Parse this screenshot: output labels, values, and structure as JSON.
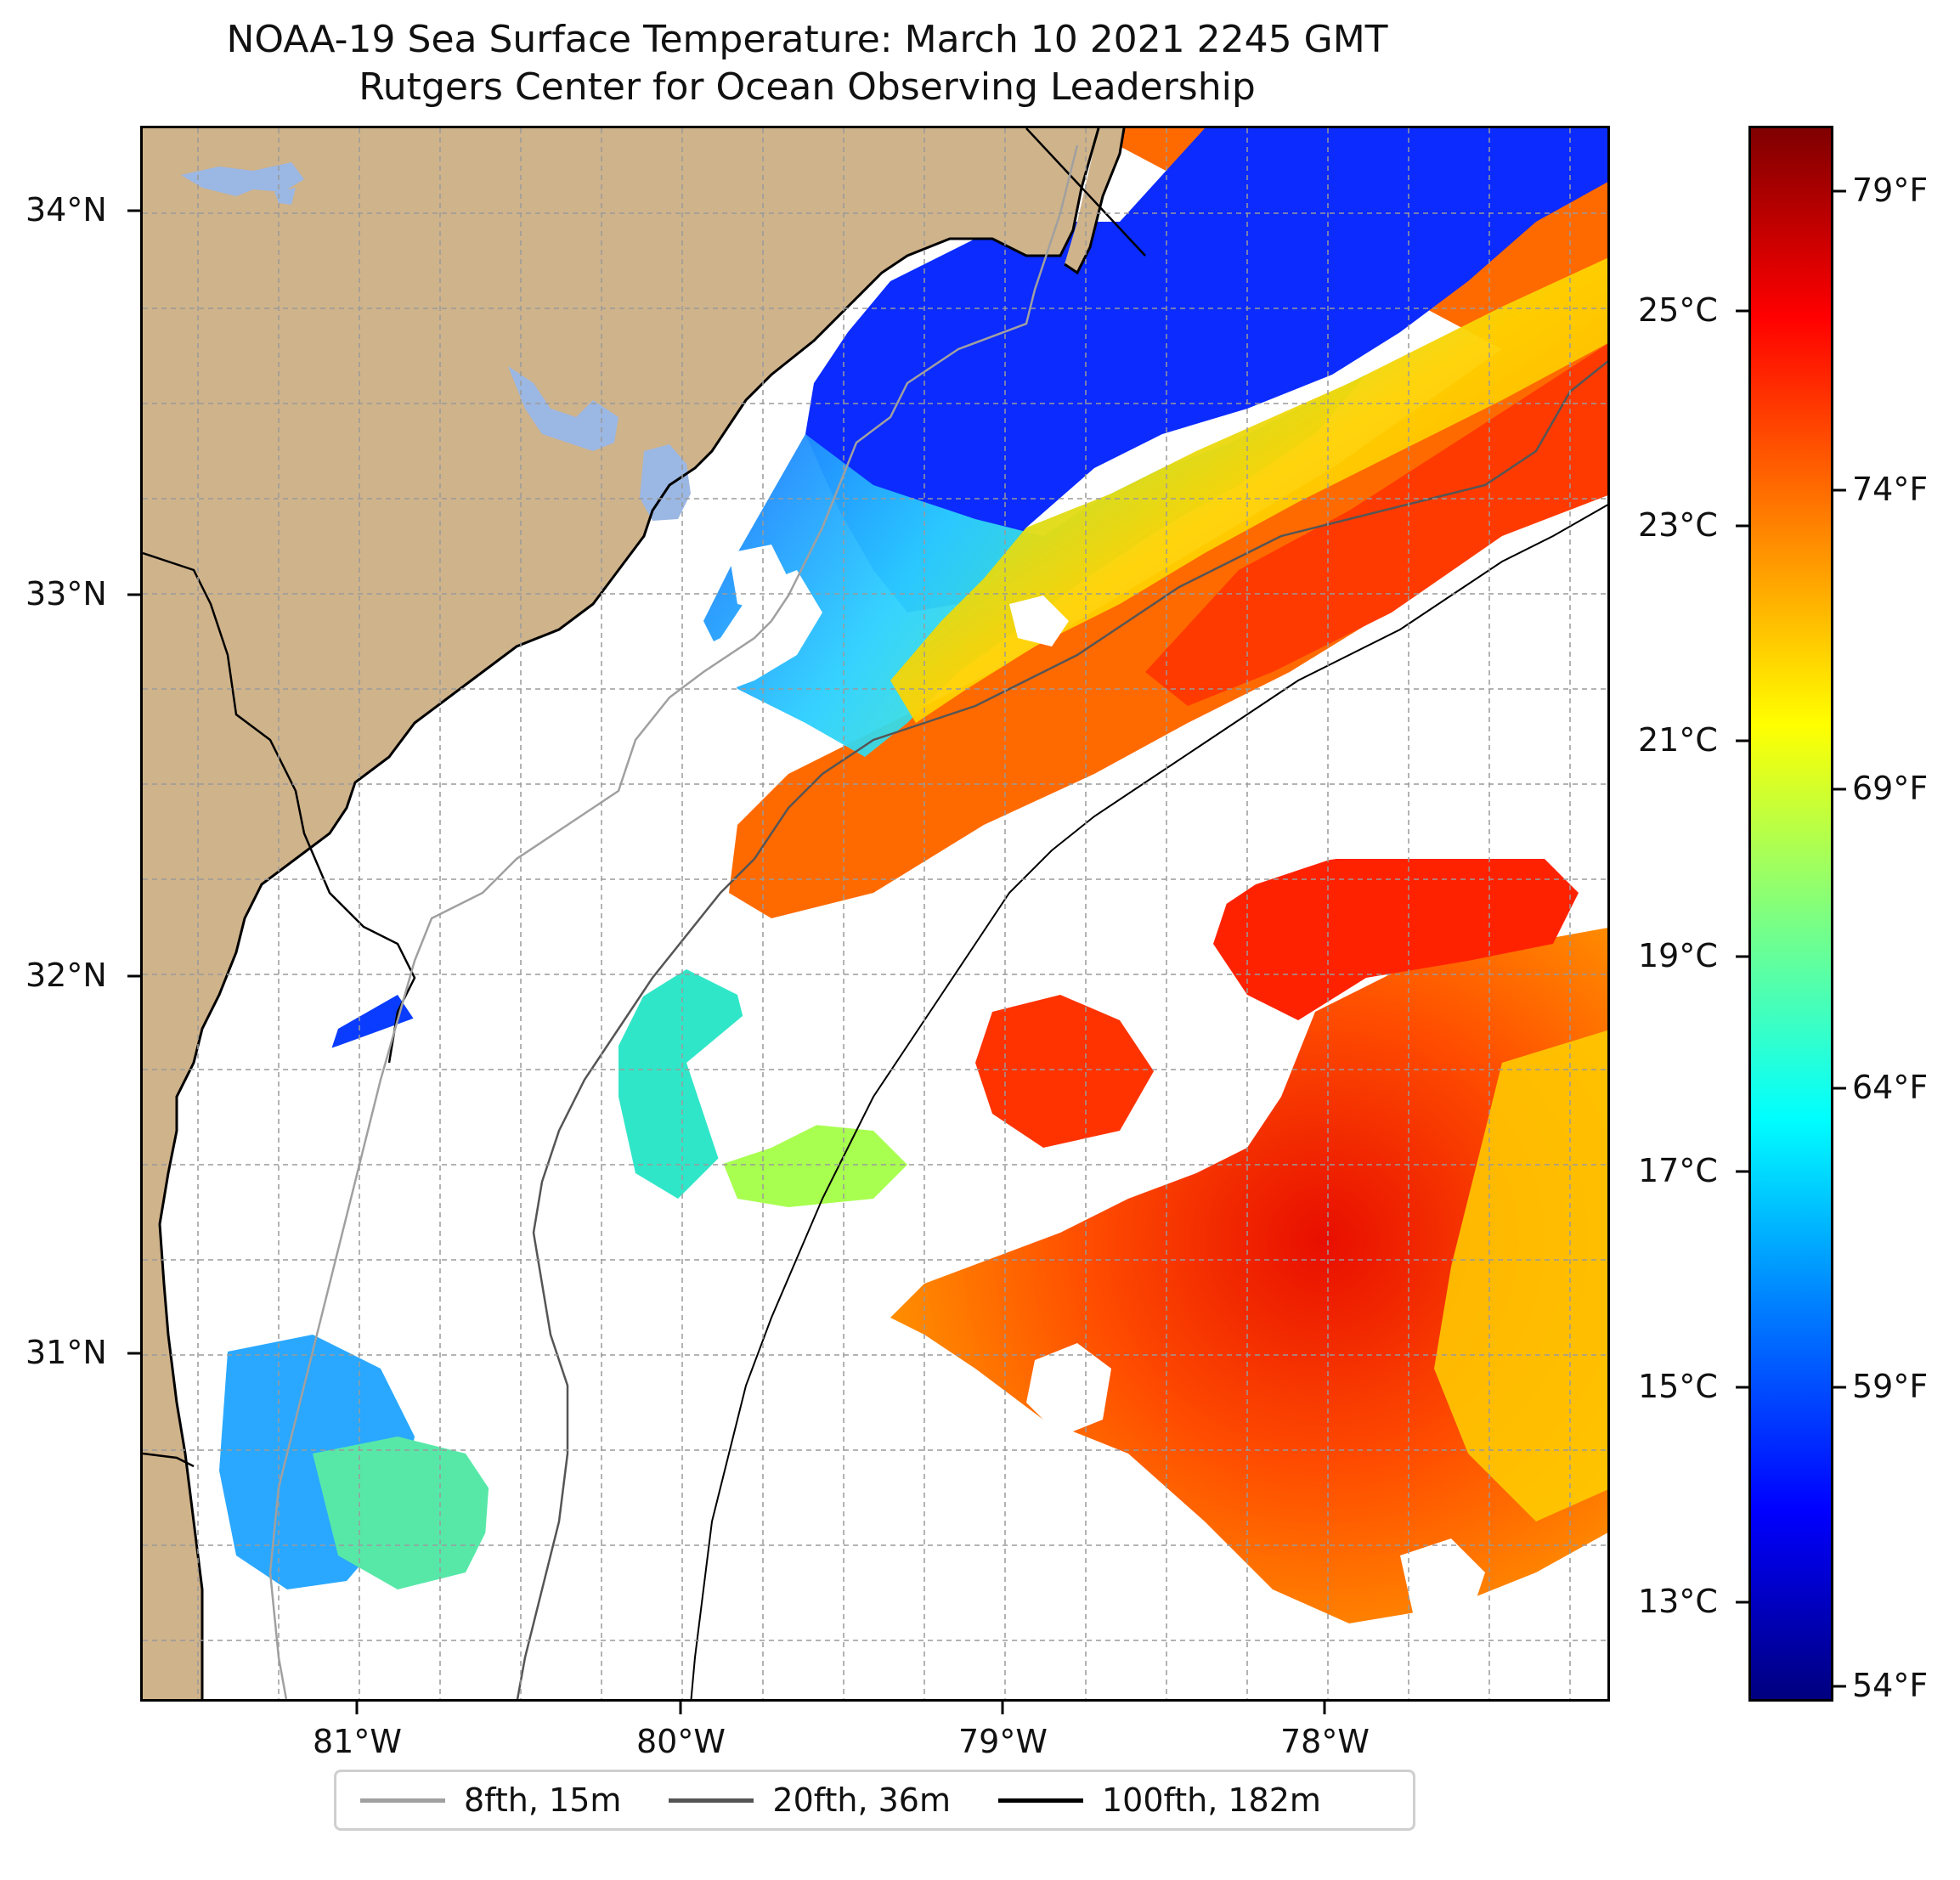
{
  "title_line1": "NOAA-19 Sea Surface Temperature: March 10 2021 2245 GMT",
  "title_line2": "Rutgers Center for Ocean Observing Leadership",
  "colors": {
    "land": "#cfb38b",
    "lakes": "#9bb7e3",
    "no_data": "#ffffff",
    "grid": "#9a9a9a",
    "coastline": "#000000"
  },
  "map": {
    "lat_labels": [
      "34°N",
      "33°N",
      "32°N",
      "31°N"
    ],
    "lon_labels": [
      "81°W",
      "80°W",
      "79°W",
      "78°W"
    ],
    "lat_range": [
      30.1,
      34.2
    ],
    "lon_range": [
      -81.66,
      -77.12
    ],
    "grid": true
  },
  "colorbar": {
    "colormap": "jet",
    "celsius_labels": [
      "25°C",
      "23°C",
      "21°C",
      "19°C",
      "17°C",
      "15°C",
      "13°C"
    ],
    "fahrenheit_labels": [
      "79°F",
      "74°F",
      "69°F",
      "64°F",
      "59°F",
      "54°F"
    ]
  },
  "legend": {
    "placement": "bottom-center",
    "items": [
      {
        "label": "8fth, 15m",
        "color": "#a0a0a0"
      },
      {
        "label": "20fth, 36m",
        "color": "#555555"
      },
      {
        "label": "100fth, 182m",
        "color": "#000000"
      }
    ]
  }
}
